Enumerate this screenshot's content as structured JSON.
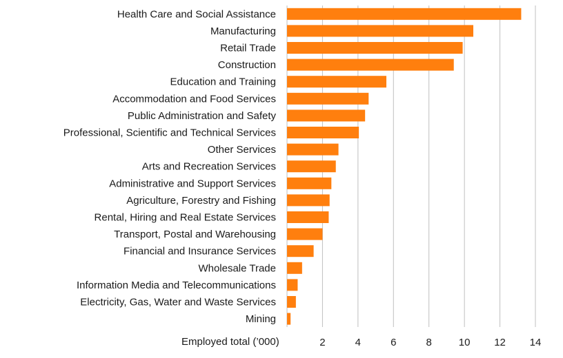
{
  "chart_data": {
    "type": "bar",
    "orientation": "horizontal",
    "categories": [
      "Health Care and Social Assistance",
      "Manufacturing",
      "Retail Trade",
      "Construction",
      "Education and Training",
      "Accommodation and Food Services",
      "Public Administration and Safety",
      "Professional, Scientific and Technical Services",
      "Other Services",
      "Arts and Recreation Services",
      "Administrative and Support Services",
      "Agriculture, Forestry and Fishing",
      "Rental, Hiring and Real Estate Services",
      "Transport, Postal and Warehousing",
      "Financial and Insurance Services",
      "Wholesale Trade",
      "Information Media and Telecommunications",
      "Electricity, Gas, Water and Waste Services",
      "Mining"
    ],
    "values": [
      13.2,
      10.5,
      9.9,
      9.4,
      5.6,
      4.6,
      4.4,
      4.05,
      2.9,
      2.75,
      2.5,
      2.4,
      2.35,
      2.0,
      1.5,
      0.85,
      0.6,
      0.5,
      0.2
    ],
    "xlabel": "Employed total (’000)",
    "xlim": [
      0,
      14
    ],
    "xticks": [
      2,
      4,
      6,
      8,
      10,
      12,
      14
    ],
    "grid": true,
    "bar_color": "#ff7f0e",
    "legend": false
  }
}
